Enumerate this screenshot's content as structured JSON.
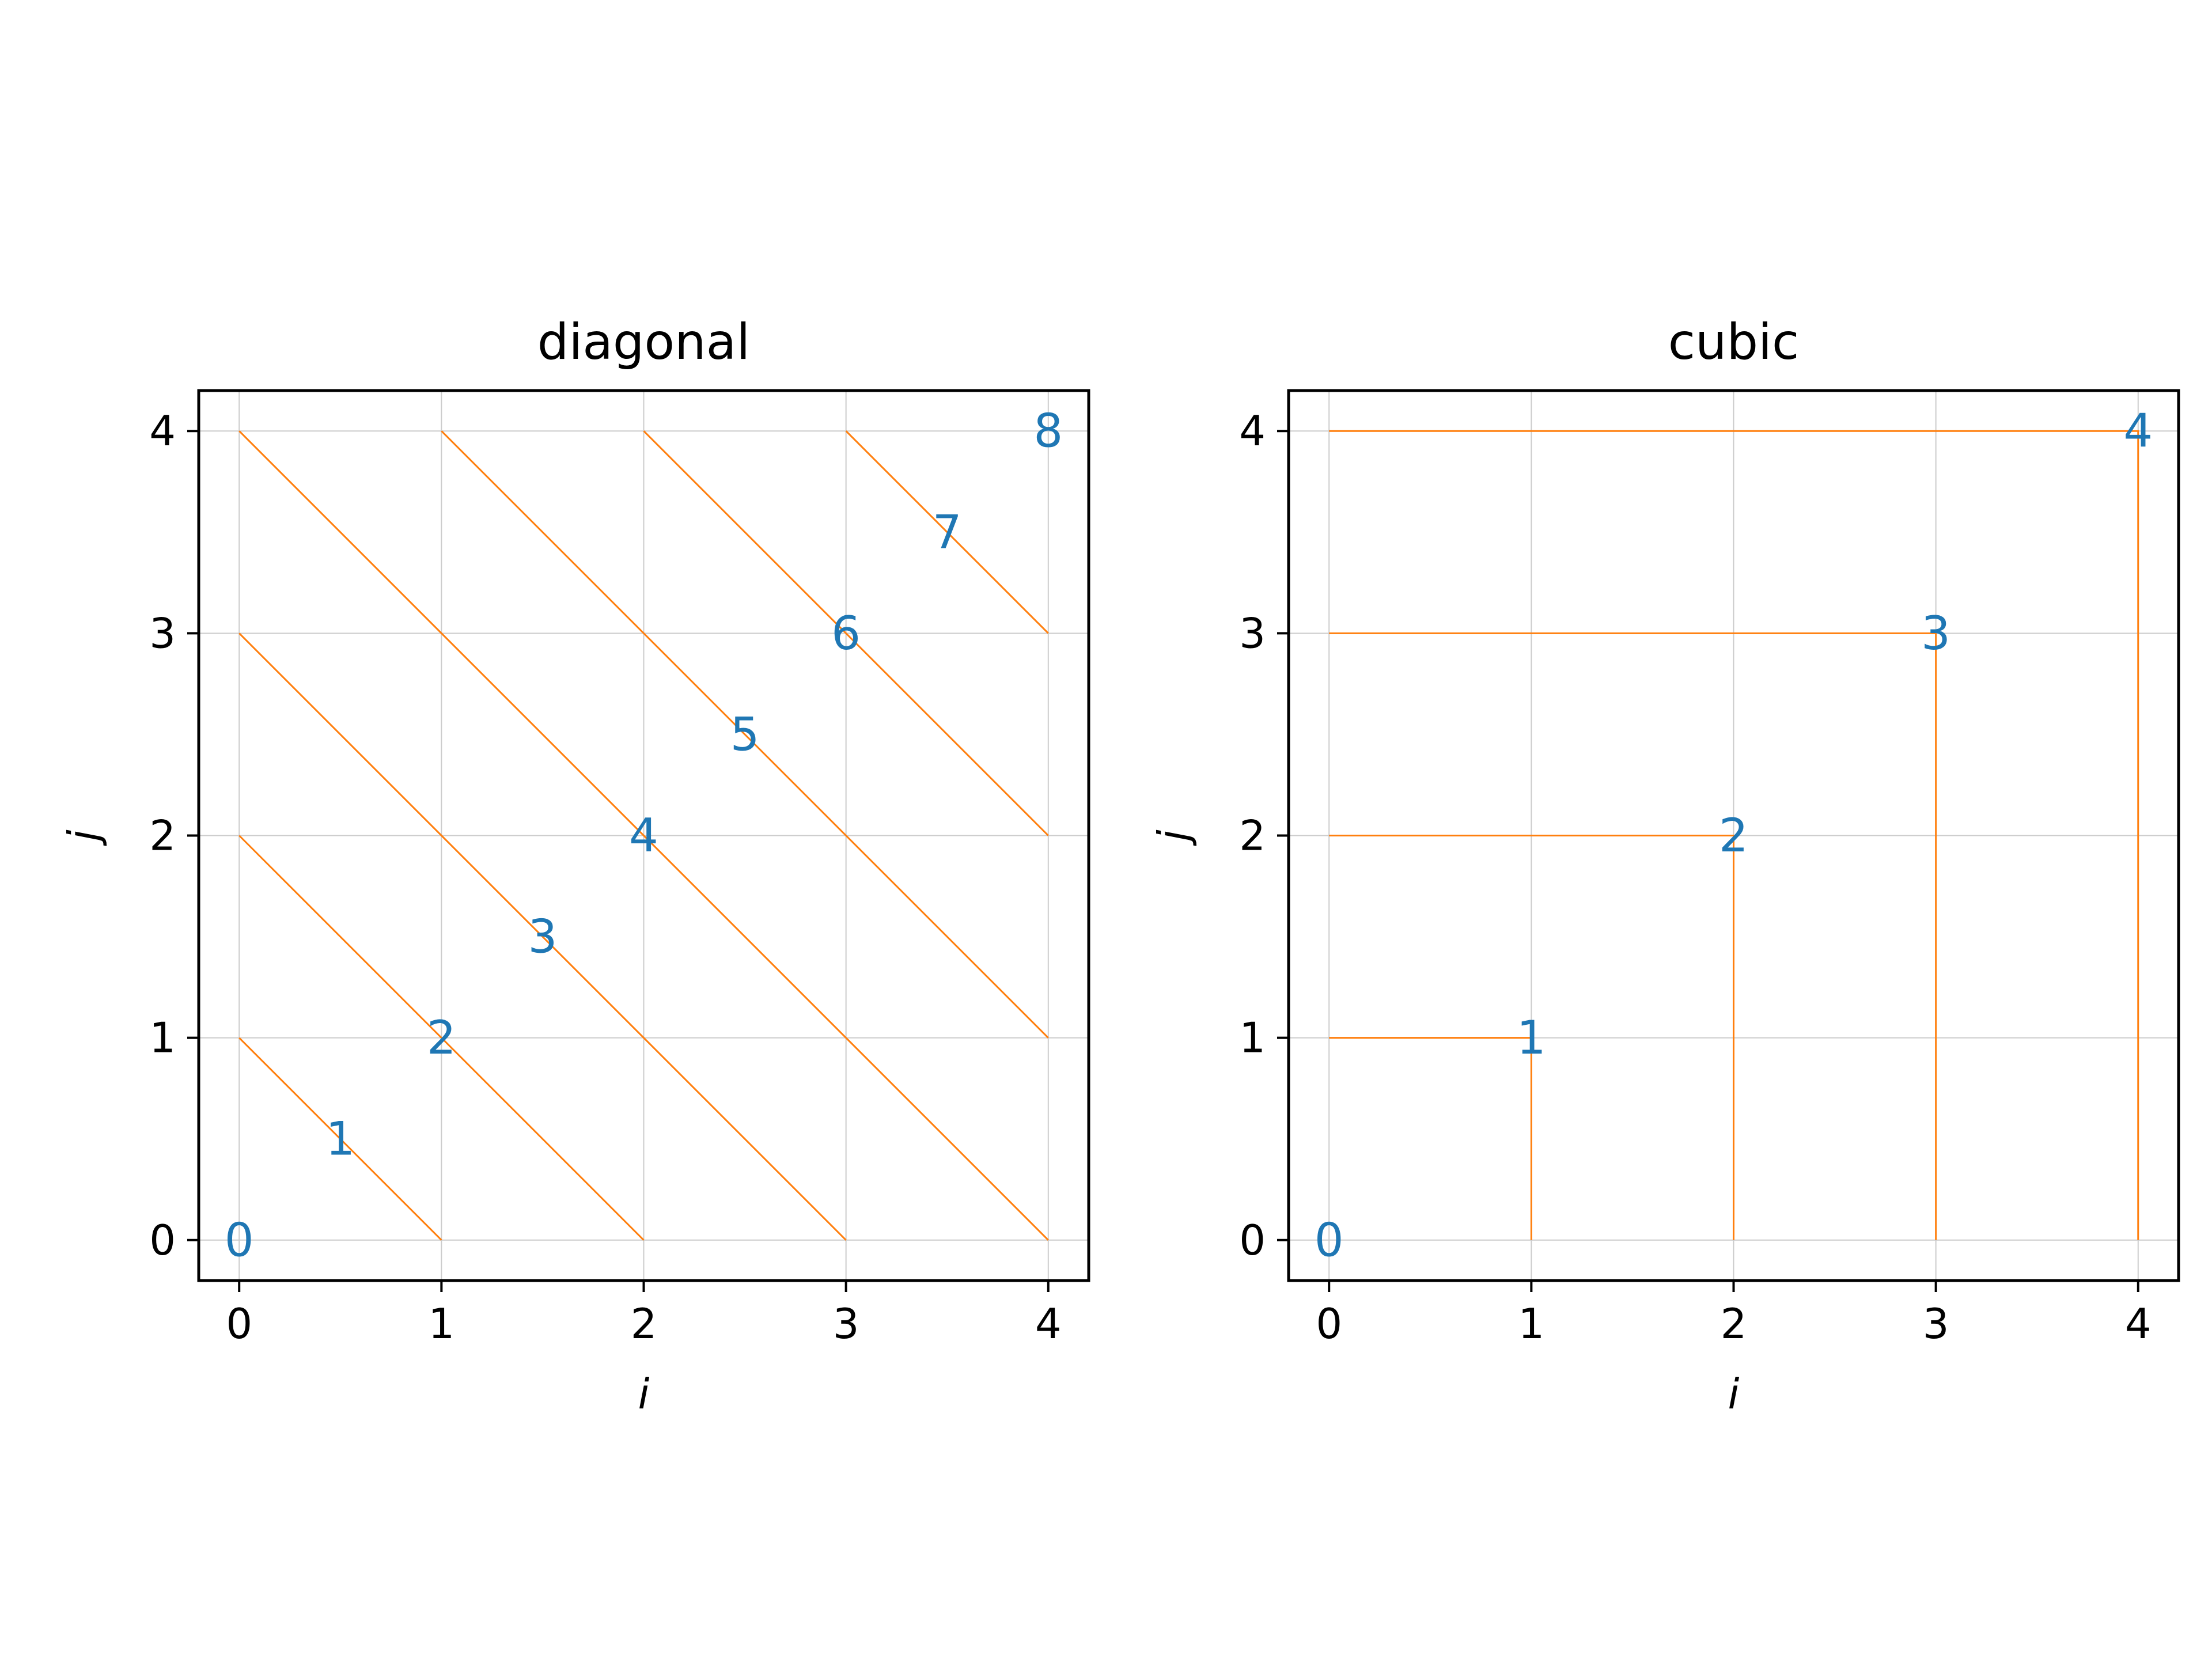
{
  "chart_data": [
    {
      "type": "line",
      "title": "diagonal",
      "xlabel": "i",
      "ylabel": "j",
      "xlim": [
        -0.2,
        4.2
      ],
      "ylim": [
        -0.2,
        4.2
      ],
      "xticks": [
        0,
        1,
        2,
        3,
        4
      ],
      "yticks": [
        0,
        1,
        2,
        3,
        4
      ],
      "grid": true,
      "segments": [
        [
          [
            0,
            1
          ],
          [
            1,
            0
          ]
        ],
        [
          [
            0,
            2
          ],
          [
            2,
            0
          ]
        ],
        [
          [
            0,
            3
          ],
          [
            3,
            0
          ]
        ],
        [
          [
            0,
            4
          ],
          [
            4,
            0
          ]
        ],
        [
          [
            1,
            4
          ],
          [
            4,
            1
          ]
        ],
        [
          [
            2,
            4
          ],
          [
            4,
            2
          ]
        ],
        [
          [
            3,
            4
          ],
          [
            4,
            3
          ]
        ]
      ],
      "annotations": [
        {
          "text": "0",
          "x": 0,
          "y": 0
        },
        {
          "text": "1",
          "x": 0.5,
          "y": 0.5
        },
        {
          "text": "2",
          "x": 1,
          "y": 1
        },
        {
          "text": "3",
          "x": 1.5,
          "y": 1.5
        },
        {
          "text": "4",
          "x": 2,
          "y": 2
        },
        {
          "text": "5",
          "x": 2.5,
          "y": 2.5
        },
        {
          "text": "6",
          "x": 3,
          "y": 3
        },
        {
          "text": "7",
          "x": 3.5,
          "y": 3.5
        },
        {
          "text": "8",
          "x": 4,
          "y": 4
        }
      ]
    },
    {
      "type": "line",
      "title": "cubic",
      "xlabel": "i",
      "ylabel": "j",
      "xlim": [
        -0.2,
        4.2
      ],
      "ylim": [
        -0.2,
        4.2
      ],
      "xticks": [
        0,
        1,
        2,
        3,
        4
      ],
      "yticks": [
        0,
        1,
        2,
        3,
        4
      ],
      "grid": true,
      "segments": [
        [
          [
            0,
            1
          ],
          [
            1,
            1
          ],
          [
            1,
            0
          ]
        ],
        [
          [
            0,
            2
          ],
          [
            2,
            2
          ],
          [
            2,
            0
          ]
        ],
        [
          [
            0,
            3
          ],
          [
            3,
            3
          ],
          [
            3,
            0
          ]
        ],
        [
          [
            0,
            4
          ],
          [
            4,
            4
          ],
          [
            4,
            0
          ]
        ]
      ],
      "annotations": [
        {
          "text": "0",
          "x": 0,
          "y": 0
        },
        {
          "text": "1",
          "x": 1,
          "y": 1
        },
        {
          "text": "2",
          "x": 2,
          "y": 2
        },
        {
          "text": "3",
          "x": 3,
          "y": 3
        },
        {
          "text": "4",
          "x": 4,
          "y": 4
        }
      ]
    }
  ],
  "colors": {
    "line": "#ff7f0e",
    "label": "#1f77b4",
    "grid": "#cccccc",
    "axes": "#000000"
  }
}
